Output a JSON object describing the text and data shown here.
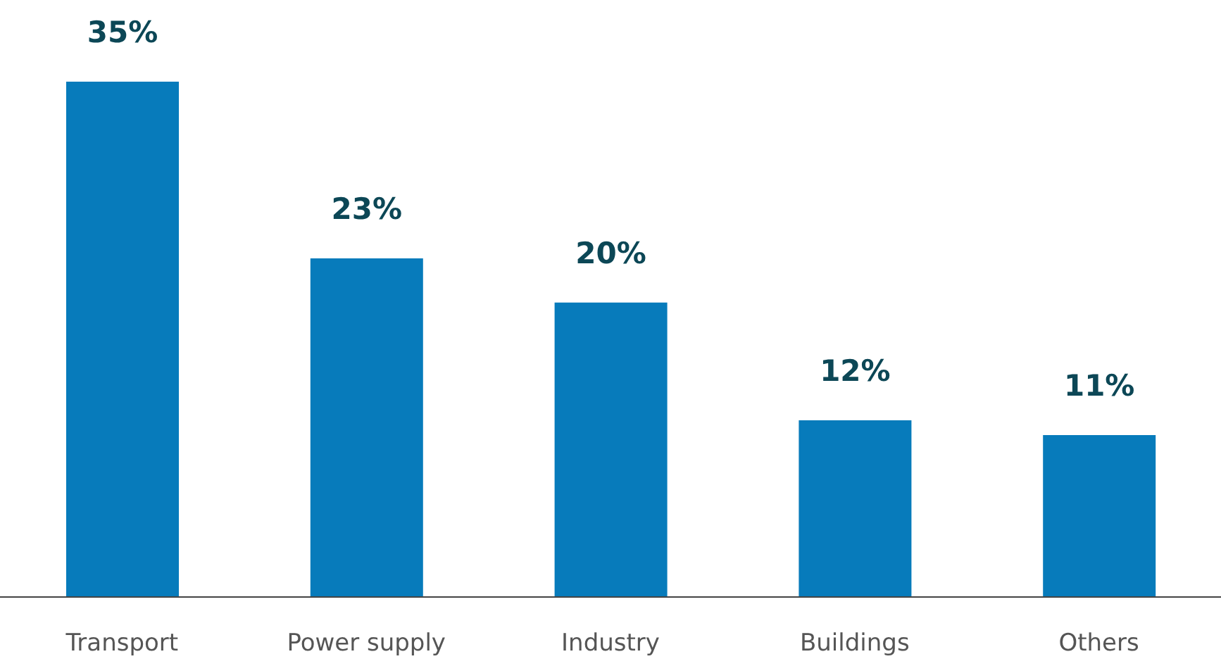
{
  "chart_data": {
    "type": "bar",
    "categories": [
      "Transport",
      "Power supply",
      "Industry",
      "Buildings",
      "Others"
    ],
    "values": [
      35,
      23,
      20,
      12,
      11
    ],
    "value_labels": [
      "35%",
      "23%",
      "20%",
      "12%",
      "11%"
    ],
    "color": "#077bbb"
  }
}
